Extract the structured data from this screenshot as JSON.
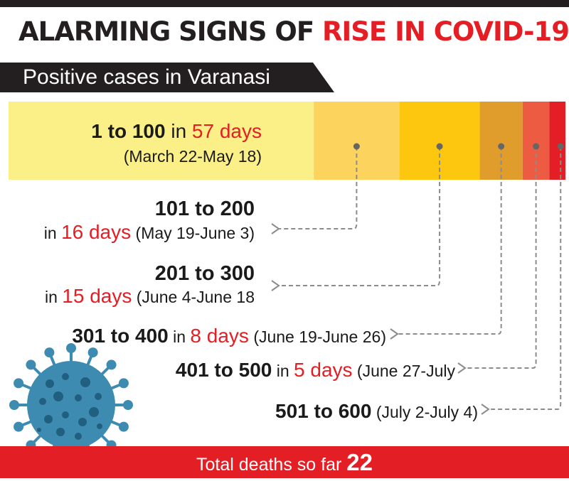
{
  "headline": {
    "part1": "ALARMING SIGNS OF ",
    "part2": "RISE IN COVID-19",
    "accent_color": "#e31e24"
  },
  "subtitle": "Positive cases in Varanasi",
  "chart_data": {
    "type": "bar",
    "title": "ALARMING SIGNS OF RISE IN COVID-19",
    "subtitle": "Positive cases in Varanasi",
    "xlabel": "",
    "ylabel": "",
    "series": [
      {
        "values": [
          57,
          16,
          15,
          8,
          5,
          3
        ],
        "colors": [
          "#fbef87",
          "#fcd45d",
          "#fdc70f",
          "#e19d2b",
          "#ee5b43",
          "#e31e24"
        ]
      }
    ],
    "segments": [
      {
        "range": "1 to 100",
        "in": "in",
        "days_value": 57,
        "days_text": "57 days",
        "dates": "(March 22-May 18)"
      },
      {
        "range": "101 to 200",
        "in": "in",
        "days_value": 16,
        "days_text": "16 days",
        "dates": "(May 19-June 3)"
      },
      {
        "range": "201 to 300",
        "in": "in",
        "days_value": 15,
        "days_text": "15 days",
        "dates": "(June 4-June 18"
      },
      {
        "range": "301 to 400",
        "in": "in",
        "days_value": 8,
        "days_text": "8 days",
        "dates": "(June 19-June 26)"
      },
      {
        "range": "401 to 500",
        "in": "in",
        "days_value": 5,
        "days_text": "5 days",
        "dates": "(June 27-July"
      },
      {
        "range": "501 to 600",
        "in": "",
        "days_value": 3,
        "days_text": "",
        "dates": "(July 2-July 4)"
      }
    ]
  },
  "footer": {
    "label": "Total deaths so far",
    "value": "22"
  },
  "colors": {
    "dark": "#231f20",
    "red": "#e31e24",
    "virus_blue": "#3d8bb0",
    "virus_dark": "#215f80",
    "connector": "#8c8c8c"
  },
  "icons": {
    "virus": "coronavirus-icon"
  }
}
